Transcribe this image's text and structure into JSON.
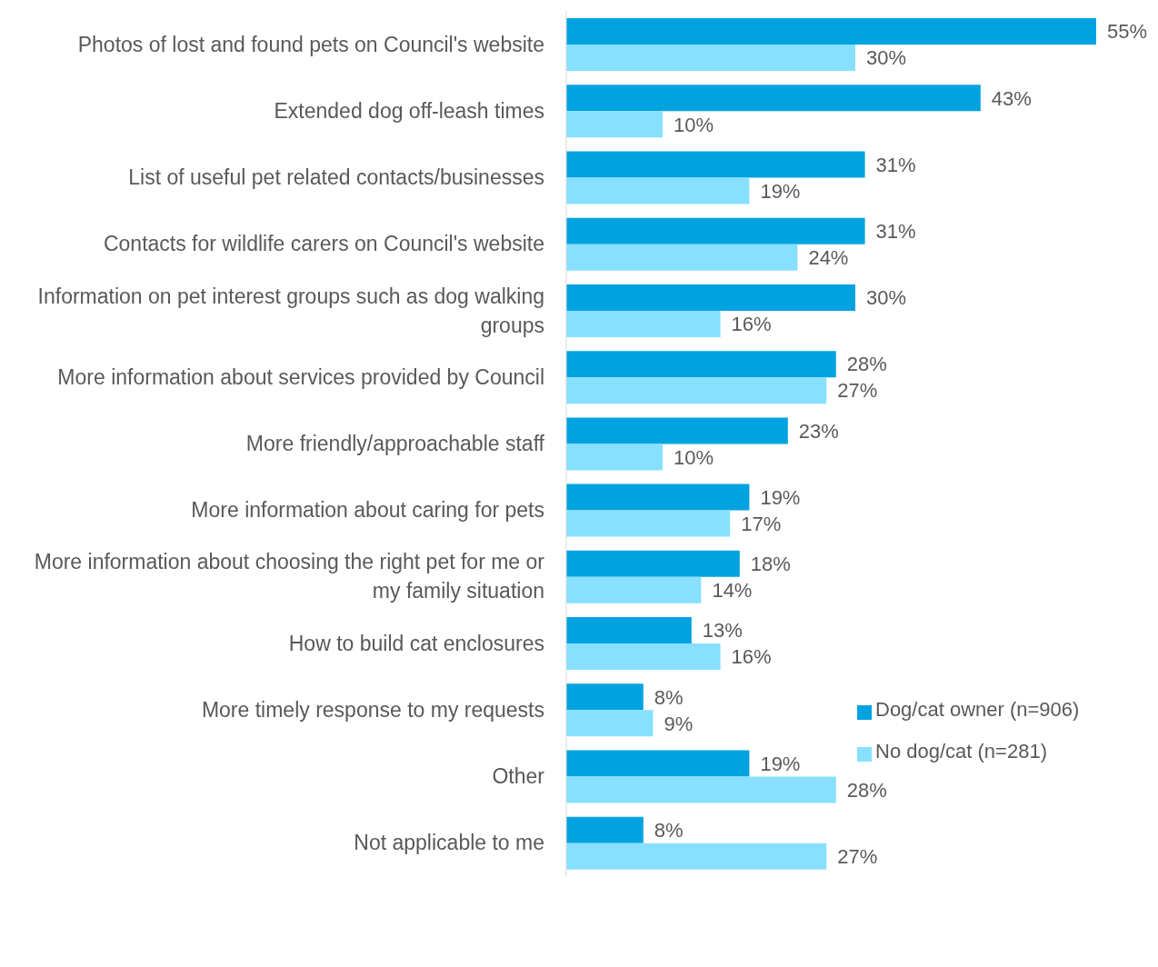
{
  "chart_data": {
    "type": "bar",
    "orientation": "horizontal",
    "categories": [
      "Photos of lost and found pets on Council's website",
      "Extended dog off-leash times",
      "List of useful pet related contacts/businesses",
      "Contacts for wildlife carers on Council's website",
      "Information on pet interest groups such as dog walking groups",
      "More information about services provided by Council",
      "More friendly/approachable staff",
      "More information about caring for pets",
      "More information about choosing the right pet for me or my family situation",
      "How to build cat enclosures",
      "More timely response to my requests",
      "Other",
      "Not applicable to me"
    ],
    "series": [
      {
        "name": "Dog/cat owner (n=906)",
        "color": "#00a3e0",
        "values": [
          55,
          43,
          31,
          31,
          30,
          28,
          23,
          19,
          18,
          13,
          8,
          19,
          8
        ],
        "value_labels": [
          "55%",
          "43%",
          "31%",
          "31%",
          "30%",
          "28%",
          "23%",
          "19%",
          "18%",
          "13%",
          "8%",
          "19%",
          "8%"
        ]
      },
      {
        "name": "No dog/cat (n=281)",
        "color": "#87e0ff",
        "values": [
          30,
          10,
          19,
          24,
          16,
          27,
          10,
          17,
          14,
          16,
          9,
          28,
          27
        ],
        "value_labels": [
          "30%",
          "10%",
          "19%",
          "24%",
          "16%",
          "27%",
          "10%",
          "17%",
          "14%",
          "16%",
          "9%",
          "28%",
          "27%"
        ]
      }
    ],
    "legend": "bottom right",
    "grid": false
  }
}
